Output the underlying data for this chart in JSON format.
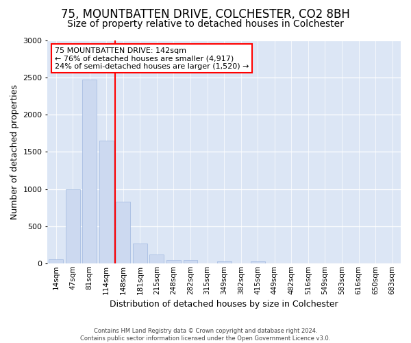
{
  "title": "75, MOUNTBATTEN DRIVE, COLCHESTER, CO2 8BH",
  "subtitle": "Size of property relative to detached houses in Colchester",
  "xlabel": "Distribution of detached houses by size in Colchester",
  "ylabel": "Number of detached properties",
  "categories": [
    "14sqm",
    "47sqm",
    "81sqm",
    "114sqm",
    "148sqm",
    "181sqm",
    "215sqm",
    "248sqm",
    "282sqm",
    "315sqm",
    "349sqm",
    "382sqm",
    "415sqm",
    "449sqm",
    "482sqm",
    "516sqm",
    "549sqm",
    "583sqm",
    "616sqm",
    "650sqm",
    "683sqm"
  ],
  "values": [
    50,
    1000,
    2470,
    1650,
    830,
    270,
    120,
    45,
    45,
    0,
    30,
    0,
    30,
    0,
    0,
    0,
    0,
    0,
    0,
    0,
    0
  ],
  "bar_color": "#ccd9f0",
  "bar_edgecolor": "#a0b8e0",
  "redline_index": 4,
  "annotation_lines": [
    "75 MOUNTBATTEN DRIVE: 142sqm",
    "← 76% of detached houses are smaller (4,917)",
    "24% of semi-detached houses are larger (1,520) →"
  ],
  "footer_lines": [
    "Contains HM Land Registry data © Crown copyright and database right 2024.",
    "Contains public sector information licensed under the Open Government Licence v3.0."
  ],
  "ylim": [
    0,
    3000
  ],
  "fig_bg_color": "#ffffff",
  "plot_bg_color": "#dce6f5",
  "title_fontsize": 12,
  "subtitle_fontsize": 10,
  "ylabel_fontsize": 9,
  "xlabel_fontsize": 9
}
